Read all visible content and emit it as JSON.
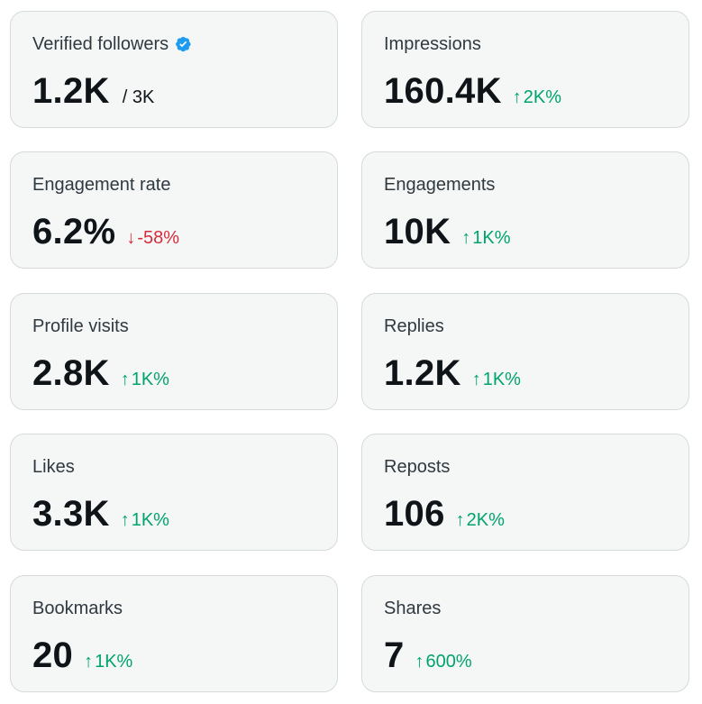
{
  "colors": {
    "card_bg": "#f5f7f7",
    "card_border": "#d6dadc",
    "up": "#00a36b",
    "down": "#d52c3d",
    "verified": "#1d9bf0"
  },
  "cards": [
    {
      "label": "Verified followers",
      "value": "1.2K",
      "suffix": "/ 3K",
      "verified_icon": "verified-badge-icon"
    },
    {
      "label": "Impressions",
      "value": "160.4K",
      "delta": "2K%",
      "direction": "up",
      "arrow_icon": "arrow-up-icon"
    },
    {
      "label": "Engagement rate",
      "value": "6.2%",
      "delta": "-58%",
      "direction": "down",
      "arrow_icon": "arrow-down-icon"
    },
    {
      "label": "Engagements",
      "value": "10K",
      "delta": "1K%",
      "direction": "up",
      "arrow_icon": "arrow-up-icon"
    },
    {
      "label": "Profile visits",
      "value": "2.8K",
      "delta": "1K%",
      "direction": "up",
      "arrow_icon": "arrow-up-icon"
    },
    {
      "label": "Replies",
      "value": "1.2K",
      "delta": "1K%",
      "direction": "up",
      "arrow_icon": "arrow-up-icon"
    },
    {
      "label": "Likes",
      "value": "3.3K",
      "delta": "1K%",
      "direction": "up",
      "arrow_icon": "arrow-up-icon"
    },
    {
      "label": "Reposts",
      "value": "106",
      "delta": "2K%",
      "direction": "up",
      "arrow_icon": "arrow-up-icon"
    },
    {
      "label": "Bookmarks",
      "value": "20",
      "delta": "1K%",
      "direction": "up",
      "arrow_icon": "arrow-up-icon"
    },
    {
      "label": "Shares",
      "value": "7",
      "delta": "600%",
      "direction": "up",
      "arrow_icon": "arrow-up-icon"
    }
  ]
}
